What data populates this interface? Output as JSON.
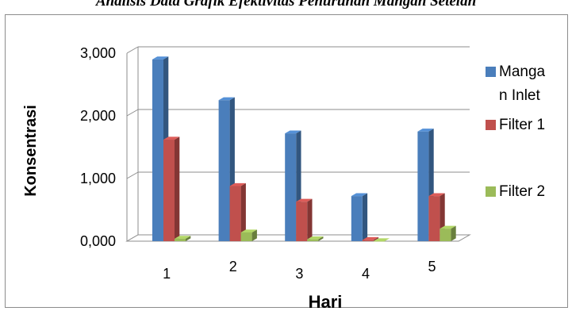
{
  "title": "Analisis Data Grafik Efektivitas Penurunan Mangan Setelah",
  "chart_data": {
    "type": "bar",
    "three_d": true,
    "categories": [
      "1",
      "2",
      "3",
      "4",
      "5"
    ],
    "series": [
      {
        "name": "Mangan Inlet",
        "legend_lines": [
          "Manga",
          "n Inlet"
        ],
        "color": "#4a7ebb",
        "values": [
          2.9,
          2.25,
          1.72,
          0.72,
          1.75
        ]
      },
      {
        "name": "Filter 1",
        "legend_lines": [
          "Filter 1"
        ],
        "color": "#c0504d",
        "values": [
          1.62,
          0.88,
          0.63,
          0.02,
          0.72
        ]
      },
      {
        "name": "Filter 2",
        "legend_lines": [
          "Filter 2"
        ],
        "color": "#9bbb59",
        "values": [
          0.04,
          0.14,
          0.03,
          0.0,
          0.2
        ]
      }
    ],
    "yticks": [
      "0,000",
      "1,000",
      "2,000",
      "3,000"
    ],
    "ylim": [
      0,
      3
    ],
    "xlabel": "Hari",
    "ylabel": "Konsentrasi",
    "legend_position": "right",
    "grid": true
  }
}
